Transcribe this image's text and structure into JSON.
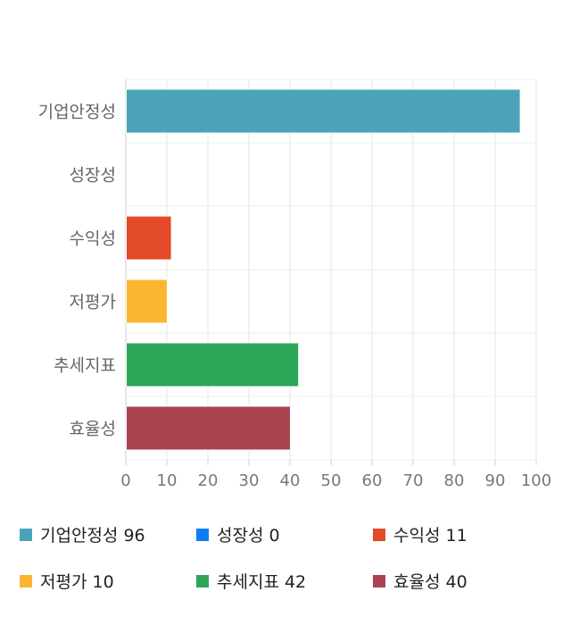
{
  "chart_data": {
    "type": "bar",
    "orientation": "horizontal",
    "categories": [
      "기업안정성",
      "성장성",
      "수익성",
      "저평가",
      "추세지표",
      "효율성"
    ],
    "values": [
      96,
      0,
      11,
      10,
      42,
      40
    ],
    "colors": [
      "#4aa3b9",
      "#0d7ff5",
      "#e34a27",
      "#fbb531",
      "#2ea658",
      "#a9434f"
    ],
    "xlim": [
      0,
      100
    ],
    "xticks": [
      "0",
      "10",
      "20",
      "30",
      "40",
      "50",
      "60",
      "70",
      "80",
      "90",
      "100"
    ],
    "grid": true,
    "legend_position": "bottom",
    "legend": [
      {
        "label": "기업안정성 96",
        "color": "#4aa3b9"
      },
      {
        "label": "성장성 0",
        "color": "#0d7ff5"
      },
      {
        "label": "수익성 11",
        "color": "#e34a27"
      },
      {
        "label": "저평가 10",
        "color": "#fbb531"
      },
      {
        "label": "추세지표 42",
        "color": "#2ea658"
      },
      {
        "label": "효율성 40",
        "color": "#a9434f"
      }
    ]
  }
}
